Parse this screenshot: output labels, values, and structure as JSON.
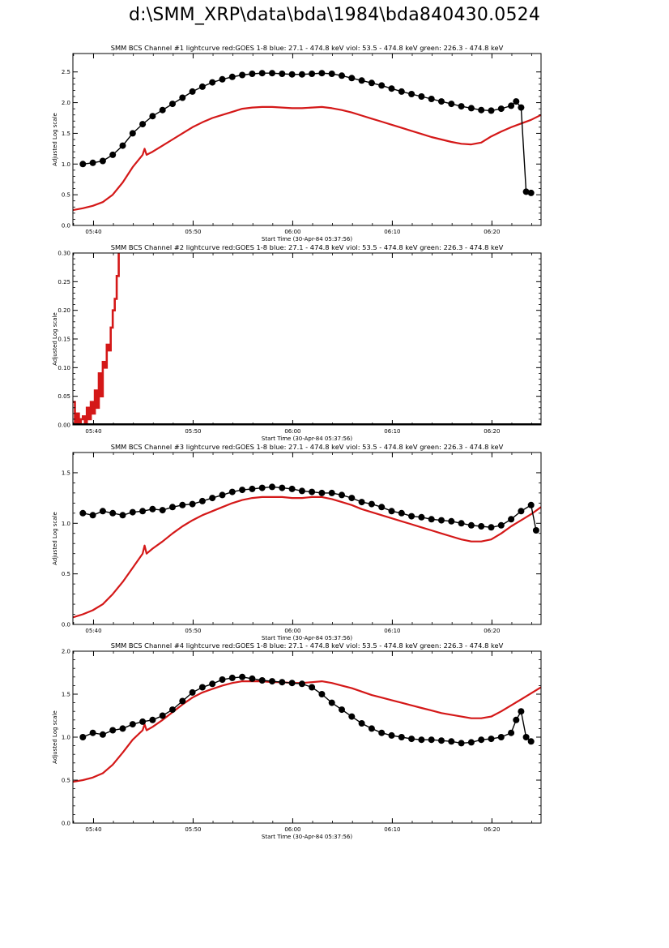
{
  "page_title": "d:\\SMM_XRP\\data\\bda\\1984\\bda840430.0524",
  "colors": {
    "goes": "#d41818",
    "bcs": "#000000",
    "axis": "#000000"
  },
  "chart_data": [
    {
      "type": "line",
      "title": "SMM BCS Channel #1 lightcurve  red:GOES 1-8  blue: 27.1 - 474.8 keV  viol: 53.5 - 474.8 keV  green: 226.3 - 474.8 keV",
      "xlabel": "Start Time (30-Apr-84 05:37:56)",
      "ylabel": "Adjusted Log scale",
      "xlim": [
        0,
        47.0
      ],
      "ylim": [
        0,
        2.8
      ],
      "x_ticks": [
        2.07,
        12.07,
        22.07,
        32.07,
        42.07
      ],
      "x_tick_labels": [
        "05:40",
        "05:50",
        "06:00",
        "06:10",
        "06:20"
      ],
      "y_ticks": [
        0.0,
        0.5,
        1.0,
        1.5,
        2.0,
        2.5
      ],
      "y_tick_labels": [
        "0.0",
        "0.5",
        "1.0",
        "1.5",
        "2.0",
        "2.5"
      ],
      "series": [
        {
          "name": "GOES 1-8",
          "color": "#d41818",
          "style": "line",
          "x": [
            0,
            1,
            2,
            3,
            4,
            5,
            6,
            7,
            7.2,
            7.4,
            8,
            9,
            10,
            11,
            12,
            13,
            14,
            15,
            16,
            17,
            18,
            19,
            20,
            21,
            22,
            23,
            24,
            25,
            26,
            27,
            28,
            29,
            30,
            31,
            32,
            33,
            34,
            35,
            36,
            37,
            38,
            39,
            40,
            41,
            42,
            43,
            44,
            45,
            46,
            47
          ],
          "y": [
            0.25,
            0.28,
            0.32,
            0.38,
            0.5,
            0.7,
            0.95,
            1.15,
            1.25,
            1.15,
            1.2,
            1.3,
            1.4,
            1.5,
            1.6,
            1.68,
            1.75,
            1.8,
            1.85,
            1.9,
            1.92,
            1.93,
            1.93,
            1.92,
            1.91,
            1.91,
            1.92,
            1.93,
            1.91,
            1.88,
            1.84,
            1.79,
            1.74,
            1.69,
            1.64,
            1.59,
            1.54,
            1.49,
            1.44,
            1.4,
            1.36,
            1.33,
            1.32,
            1.35,
            1.45,
            1.53,
            1.6,
            1.66,
            1.72,
            1.8
          ]
        },
        {
          "name": "BCS Channel #1",
          "color": "#000000",
          "style": "markers",
          "x": [
            1,
            2,
            3,
            4,
            5,
            6,
            7,
            8,
            9,
            10,
            11,
            12,
            13,
            14,
            15,
            16,
            17,
            18,
            19,
            20,
            21,
            22,
            23,
            24,
            25,
            26,
            27,
            28,
            29,
            30,
            31,
            32,
            33,
            34,
            35,
            36,
            37,
            38,
            39,
            40,
            41,
            42,
            43,
            44,
            44.5,
            45,
            45.5,
            46
          ],
          "y": [
            1.0,
            1.02,
            1.05,
            1.15,
            1.3,
            1.5,
            1.65,
            1.78,
            1.88,
            1.98,
            2.08,
            2.18,
            2.26,
            2.33,
            2.38,
            2.42,
            2.45,
            2.47,
            2.48,
            2.48,
            2.47,
            2.46,
            2.46,
            2.47,
            2.48,
            2.47,
            2.44,
            2.4,
            2.36,
            2.32,
            2.28,
            2.23,
            2.18,
            2.14,
            2.1,
            2.06,
            2.02,
            1.98,
            1.94,
            1.91,
            1.88,
            1.87,
            1.9,
            1.95,
            2.02,
            1.92,
            0.55,
            0.53
          ]
        }
      ]
    },
    {
      "type": "line",
      "title": "SMM BCS Channel #2 lightcurve  red:GOES 1-8  blue: 27.1 - 474.8 keV  viol: 53.5 - 474.8 keV  green: 226.3 - 474.8 keV",
      "xlabel": "Start Time (30-Apr-84 05:37:56)",
      "ylabel": "Adjusted Log scale",
      "xlim": [
        0,
        47.0
      ],
      "ylim": [
        0,
        0.3
      ],
      "x_ticks": [
        2.07,
        12.07,
        22.07,
        32.07,
        42.07
      ],
      "x_tick_labels": [
        "05:40",
        "05:50",
        "06:00",
        "06:10",
        "06:20"
      ],
      "y_ticks": [
        0.0,
        0.05,
        0.1,
        0.15,
        0.2,
        0.25,
        0.3
      ],
      "y_tick_labels": [
        "0.00",
        "0.05",
        "0.10",
        "0.15",
        "0.20",
        "0.25",
        "0.30"
      ],
      "series": [
        {
          "name": "GOES 1-8",
          "color": "#d41818",
          "style": "jagged",
          "x": [
            0,
            0.2,
            0.4,
            0.6,
            0.8,
            1.0,
            1.2,
            1.4,
            1.6,
            1.8,
            2.0,
            2.2,
            2.4,
            2.6,
            2.8,
            3.0,
            3.2,
            3.4,
            3.6,
            3.8,
            4.0,
            4.2,
            4.4,
            4.6
          ],
          "y": [
            0.04,
            0.0,
            0.02,
            0.0,
            0.01,
            0.015,
            0.0,
            0.03,
            0.01,
            0.04,
            0.02,
            0.06,
            0.03,
            0.09,
            0.05,
            0.11,
            0.1,
            0.14,
            0.13,
            0.17,
            0.2,
            0.22,
            0.26,
            0.3
          ]
        },
        {
          "name": "BCS Channel #2",
          "color": "#000000",
          "style": "markers",
          "x": [
            0,
            47
          ],
          "y": [
            0.0,
            0.0
          ]
        }
      ]
    },
    {
      "type": "line",
      "title": "SMM BCS Channel #3 lightcurve  red:GOES 1-8  blue: 27.1 - 474.8 keV  viol: 53.5 - 474.8 keV  green: 226.3 - 474.8 keV",
      "xlabel": "Start Time (30-Apr-84 05:37:56)",
      "ylabel": "Adjusted Log scale",
      "xlim": [
        0,
        47.0
      ],
      "ylim": [
        0,
        1.7
      ],
      "x_ticks": [
        2.07,
        12.07,
        22.07,
        32.07,
        42.07
      ],
      "x_tick_labels": [
        "05:40",
        "05:50",
        "06:00",
        "06:10",
        "06:20"
      ],
      "y_ticks": [
        0.0,
        0.5,
        1.0,
        1.5
      ],
      "y_tick_labels": [
        "0.0",
        "0.5",
        "1.0",
        "1.5"
      ],
      "series": [
        {
          "name": "GOES 1-8",
          "color": "#d41818",
          "style": "line",
          "x": [
            0,
            1,
            2,
            3,
            4,
            5,
            6,
            7,
            7.2,
            7.4,
            8,
            9,
            10,
            11,
            12,
            13,
            14,
            15,
            16,
            17,
            18,
            19,
            20,
            21,
            22,
            23,
            24,
            25,
            26,
            27,
            28,
            29,
            30,
            31,
            32,
            33,
            34,
            35,
            36,
            37,
            38,
            39,
            40,
            41,
            42,
            43,
            44,
            45,
            46,
            47
          ],
          "y": [
            0.07,
            0.1,
            0.14,
            0.2,
            0.3,
            0.42,
            0.56,
            0.7,
            0.78,
            0.7,
            0.75,
            0.82,
            0.9,
            0.97,
            1.03,
            1.08,
            1.12,
            1.16,
            1.2,
            1.23,
            1.25,
            1.26,
            1.26,
            1.26,
            1.25,
            1.25,
            1.26,
            1.26,
            1.24,
            1.21,
            1.18,
            1.14,
            1.11,
            1.08,
            1.05,
            1.02,
            0.99,
            0.96,
            0.93,
            0.9,
            0.87,
            0.84,
            0.82,
            0.82,
            0.84,
            0.9,
            0.97,
            1.03,
            1.09,
            1.16
          ]
        },
        {
          "name": "BCS Channel #3",
          "color": "#000000",
          "style": "markers",
          "x": [
            1,
            2,
            3,
            4,
            5,
            6,
            7,
            8,
            9,
            10,
            11,
            12,
            13,
            14,
            15,
            16,
            17,
            18,
            19,
            20,
            21,
            22,
            23,
            24,
            25,
            26,
            27,
            28,
            29,
            30,
            31,
            32,
            33,
            34,
            35,
            36,
            37,
            38,
            39,
            40,
            41,
            42,
            43,
            44,
            45,
            46,
            46.5
          ],
          "y": [
            1.1,
            1.08,
            1.12,
            1.1,
            1.08,
            1.11,
            1.12,
            1.14,
            1.13,
            1.16,
            1.18,
            1.19,
            1.22,
            1.25,
            1.28,
            1.31,
            1.33,
            1.34,
            1.35,
            1.36,
            1.35,
            1.34,
            1.32,
            1.31,
            1.3,
            1.3,
            1.28,
            1.25,
            1.21,
            1.19,
            1.16,
            1.12,
            1.1,
            1.07,
            1.06,
            1.04,
            1.03,
            1.02,
            1.0,
            0.98,
            0.97,
            0.96,
            0.98,
            1.04,
            1.12,
            1.18,
            0.93
          ]
        }
      ]
    },
    {
      "type": "line",
      "title": "SMM BCS Channel #4 lightcurve  red:GOES 1-8  blue: 27.1 - 474.8 keV  viol: 53.5 - 474.8 keV  green: 226.3 - 474.8 keV",
      "xlabel": "Start Time (30-Apr-84 05:37:56)",
      "ylabel": "Adjusted Log scale",
      "xlim": [
        0,
        47.0
      ],
      "ylim": [
        0,
        2.0
      ],
      "x_ticks": [
        2.07,
        12.07,
        22.07,
        32.07,
        42.07
      ],
      "x_tick_labels": [
        "05:40",
        "05:50",
        "06:00",
        "06:10",
        "06:20"
      ],
      "y_ticks": [
        0.0,
        0.5,
        1.0,
        1.5,
        2.0
      ],
      "y_tick_labels": [
        "0.0",
        "0.5",
        "1.0",
        "1.5",
        "2.0"
      ],
      "series": [
        {
          "name": "GOES 1-8",
          "color": "#d41818",
          "style": "line",
          "x": [
            0,
            1,
            2,
            3,
            4,
            5,
            6,
            7,
            7.2,
            7.4,
            8,
            9,
            10,
            11,
            12,
            13,
            14,
            15,
            16,
            17,
            18,
            19,
            20,
            21,
            22,
            23,
            24,
            25,
            26,
            27,
            28,
            29,
            30,
            31,
            32,
            33,
            34,
            35,
            36,
            37,
            38,
            39,
            40,
            41,
            42,
            43,
            44,
            45,
            46,
            47
          ],
          "y": [
            0.48,
            0.5,
            0.53,
            0.58,
            0.68,
            0.82,
            0.97,
            1.08,
            1.15,
            1.08,
            1.12,
            1.2,
            1.29,
            1.38,
            1.46,
            1.52,
            1.56,
            1.6,
            1.63,
            1.65,
            1.65,
            1.65,
            1.64,
            1.64,
            1.63,
            1.63,
            1.64,
            1.65,
            1.63,
            1.6,
            1.57,
            1.53,
            1.49,
            1.46,
            1.43,
            1.4,
            1.37,
            1.34,
            1.31,
            1.28,
            1.26,
            1.24,
            1.22,
            1.22,
            1.24,
            1.3,
            1.37,
            1.44,
            1.51,
            1.58
          ]
        },
        {
          "name": "BCS Channel #4",
          "color": "#000000",
          "style": "markers",
          "x": [
            1,
            2,
            3,
            4,
            5,
            6,
            7,
            8,
            9,
            10,
            11,
            12,
            13,
            14,
            15,
            16,
            17,
            18,
            19,
            20,
            21,
            22,
            23,
            24,
            25,
            26,
            27,
            28,
            29,
            30,
            31,
            32,
            33,
            34,
            35,
            36,
            37,
            38,
            39,
            40,
            41,
            42,
            43,
            44,
            44.5,
            45,
            45.5,
            46
          ],
          "y": [
            1.0,
            1.05,
            1.03,
            1.08,
            1.1,
            1.15,
            1.18,
            1.2,
            1.25,
            1.32,
            1.42,
            1.52,
            1.58,
            1.62,
            1.67,
            1.69,
            1.7,
            1.68,
            1.66,
            1.65,
            1.64,
            1.63,
            1.62,
            1.58,
            1.5,
            1.4,
            1.32,
            1.24,
            1.16,
            1.1,
            1.05,
            1.02,
            1.0,
            0.98,
            0.97,
            0.97,
            0.96,
            0.95,
            0.93,
            0.94,
            0.97,
            0.98,
            1.0,
            1.05,
            1.2,
            1.3,
            1.0,
            0.95
          ]
        }
      ]
    }
  ]
}
